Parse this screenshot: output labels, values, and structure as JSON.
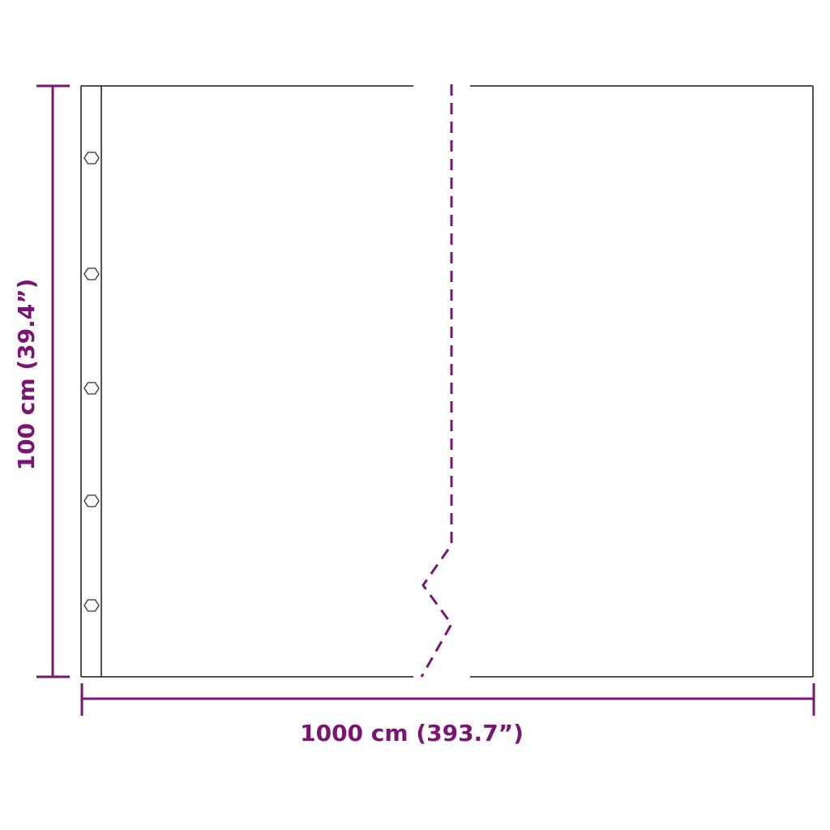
{
  "dimensions": {
    "width_label": "1000 cm (393.7”)",
    "height_label": "100 cm (39.4”)"
  },
  "colors": {
    "dimension": "#7a1574",
    "outline": "#1a1a1a"
  },
  "grommet_count": 5
}
